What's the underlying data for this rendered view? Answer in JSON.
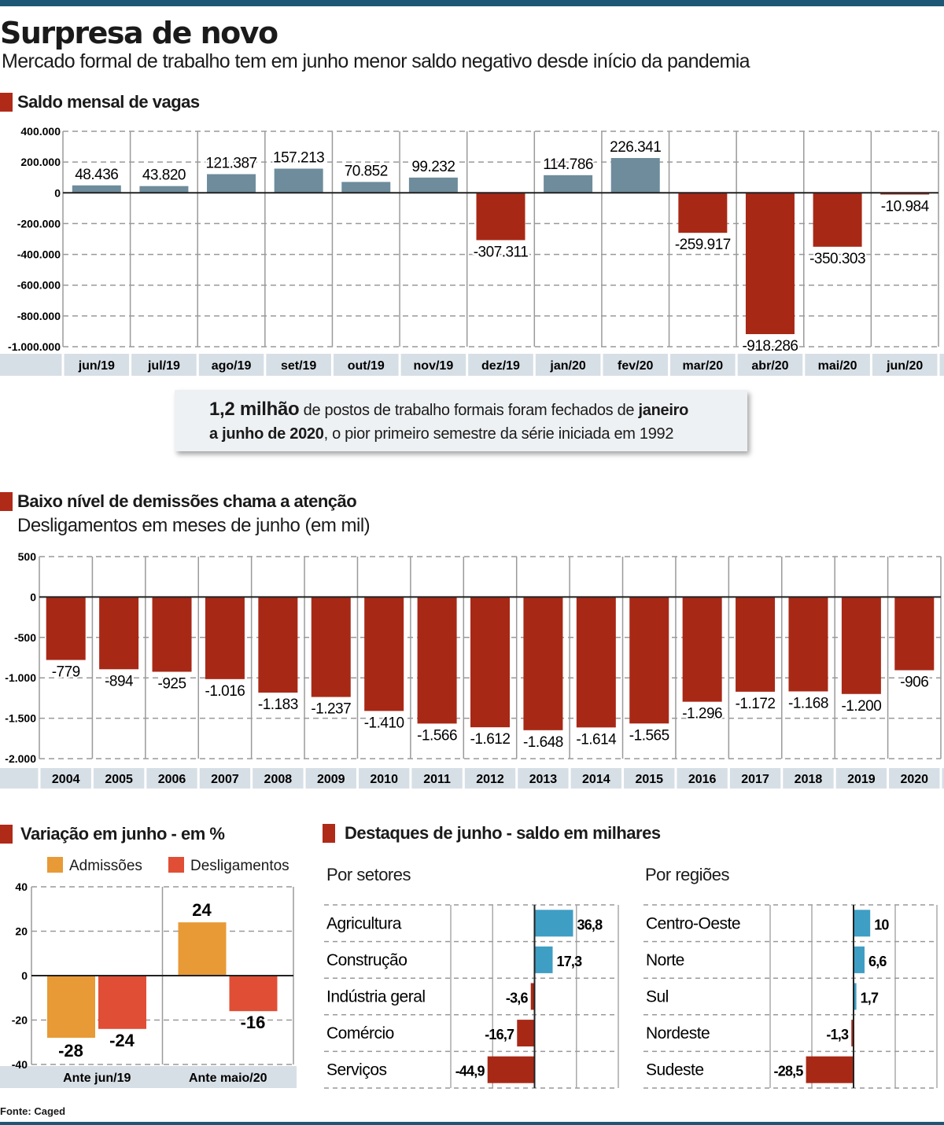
{
  "header": {
    "title": "Surpresa de novo",
    "subtitle": "Mercado formal de trabalho tem em junho menor saldo negativo desde início da pandemia"
  },
  "colors": {
    "positive": "#6e8c9b",
    "negative": "#a82816",
    "admissoes": "#e89a36",
    "desligamentos": "#e04e35",
    "setor_positive": "#3f9ec4",
    "accent": "#1d5775",
    "band": "#d7dfe6"
  },
  "callout": {
    "p1": "1,2 milhão",
    "p2": " de postos de trabalho formais foram fechados de ",
    "p3": "janeiro",
    "p4": "a junho de 2020",
    "p5": ", o pior primeiro semestre da série iniciada em 1992"
  },
  "source": "Fonte: Caged",
  "chart_data": [
    {
      "type": "bar",
      "title": "Saldo mensal de vagas",
      "categories": [
        "jun/19",
        "jul/19",
        "ago/19",
        "set/19",
        "out/19",
        "nov/19",
        "dez/19",
        "jan/20",
        "fev/20",
        "mar/20",
        "abr/20",
        "mai/20",
        "jun/20"
      ],
      "values": [
        48436,
        43820,
        121387,
        157213,
        70852,
        99232,
        -307311,
        114786,
        226341,
        -259917,
        -918286,
        -350303,
        -10984
      ],
      "ylim": [
        -1000000,
        400000
      ],
      "yticks": [
        400000,
        200000,
        0,
        -200000,
        -400000,
        -600000,
        -800000,
        -1000000
      ],
      "grid": true
    },
    {
      "type": "bar",
      "title": "Baixo nível de demissões chama a atenção",
      "subtitle": "Desligamentos em meses de junho (em mil)",
      "categories": [
        "2004",
        "2005",
        "2006",
        "2007",
        "2008",
        "2009",
        "2010",
        "2011",
        "2012",
        "2013",
        "2014",
        "2015",
        "2016",
        "2017",
        "2018",
        "2019",
        "2020"
      ],
      "values": [
        -779,
        -894,
        -925,
        -1016,
        -1183,
        -1237,
        -1410,
        -1566,
        -1612,
        -1648,
        -1614,
        -1565,
        -1296,
        -1172,
        -1168,
        -1200,
        -906
      ],
      "ylim": [
        -2000,
        500
      ],
      "yticks": [
        500,
        0,
        -500,
        -1000,
        -1500,
        -2000
      ],
      "grid": true
    },
    {
      "type": "bar",
      "title": "Variação em junho - em %",
      "categories": [
        "Ante jun/19",
        "Ante maio/20"
      ],
      "series": [
        {
          "name": "Admissões",
          "values": [
            -28,
            24
          ]
        },
        {
          "name": "Desligamentos",
          "values": [
            -24,
            -16
          ]
        }
      ],
      "ylim": [
        -40,
        40
      ],
      "yticks": [
        40,
        20,
        0,
        -20,
        -40
      ],
      "legend": "top",
      "grid": true
    },
    {
      "type": "bar",
      "orientation": "horizontal",
      "title": "Destaques de junho - saldo em milhares",
      "panels": [
        {
          "title": "Por setores",
          "categories": [
            "Agricultura",
            "Construção",
            "Indústria geral",
            "Comércio",
            "Serviços"
          ],
          "values": [
            36.8,
            17.3,
            -3.6,
            -16.7,
            -44.9
          ],
          "xlim": [
            -80,
            80
          ]
        },
        {
          "title": "Por regiões",
          "categories": [
            "Centro-Oeste",
            "Norte",
            "Sul",
            "Nordeste",
            "Sudeste"
          ],
          "values": [
            10,
            6.6,
            1.7,
            -1.3,
            -28.5
          ],
          "xlim": [
            -50,
            50
          ]
        }
      ]
    }
  ]
}
